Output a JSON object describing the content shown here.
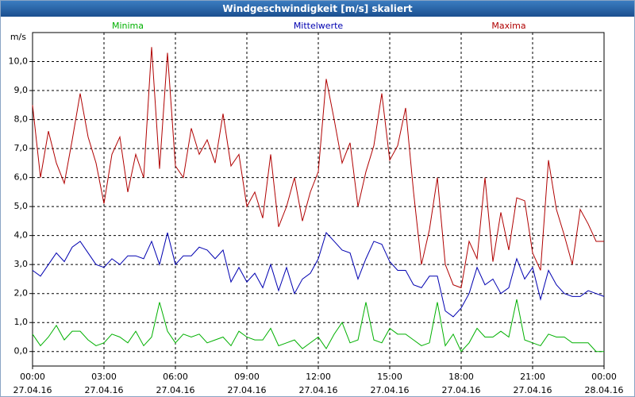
{
  "chart_data": {
    "type": "line",
    "title": "Windgeschwindigkeit [m/s] skaliert",
    "y_label": "m/s",
    "grid": true,
    "x": [
      "27.04.16 00:00",
      "27.04.16 00:20",
      "27.04.16 00:40",
      "27.04.16 01:00",
      "27.04.16 01:20",
      "27.04.16 01:40",
      "27.04.16 02:00",
      "27.04.16 02:20",
      "27.04.16 02:40",
      "27.04.16 03:00",
      "27.04.16 03:20",
      "27.04.16 03:40",
      "27.04.16 04:00",
      "27.04.16 04:20",
      "27.04.16 04:40",
      "27.04.16 05:00",
      "27.04.16 05:20",
      "27.04.16 05:40",
      "27.04.16 06:00",
      "27.04.16 06:20",
      "27.04.16 06:40",
      "27.04.16 07:00",
      "27.04.16 07:20",
      "27.04.16 07:40",
      "27.04.16 08:00",
      "27.04.16 08:20",
      "27.04.16 08:40",
      "27.04.16 09:00",
      "27.04.16 09:20",
      "27.04.16 09:40",
      "27.04.16 10:00",
      "27.04.16 10:20",
      "27.04.16 10:40",
      "27.04.16 11:00",
      "27.04.16 11:20",
      "27.04.16 11:40",
      "27.04.16 12:00",
      "27.04.16 12:20",
      "27.04.16 12:40",
      "27.04.16 13:00",
      "27.04.16 13:20",
      "27.04.16 13:40",
      "27.04.16 14:00",
      "27.04.16 14:20",
      "27.04.16 14:40",
      "27.04.16 15:00",
      "27.04.16 15:20",
      "27.04.16 15:40",
      "27.04.16 16:00",
      "27.04.16 16:20",
      "27.04.16 16:40",
      "27.04.16 17:00",
      "27.04.16 17:20",
      "27.04.16 17:40",
      "27.04.16 18:00",
      "27.04.16 18:20",
      "27.04.16 18:40",
      "27.04.16 19:00",
      "27.04.16 19:20",
      "27.04.16 19:40",
      "27.04.16 20:00",
      "27.04.16 20:20",
      "27.04.16 20:40",
      "27.04.16 21:00",
      "27.04.16 21:20",
      "27.04.16 21:40",
      "27.04.16 22:00",
      "27.04.16 22:20",
      "27.04.16 22:40",
      "27.04.16 23:00",
      "27.04.16 23:20",
      "27.04.16 23:40",
      "28.04.16 00:00"
    ],
    "series": [
      {
        "name": "Minima",
        "color": "#00b000",
        "values": [
          0.6,
          0.2,
          0.5,
          0.9,
          0.4,
          0.7,
          0.7,
          0.4,
          0.2,
          0.3,
          0.6,
          0.5,
          0.3,
          0.7,
          0.2,
          0.5,
          1.7,
          0.7,
          0.3,
          0.6,
          0.5,
          0.6,
          0.3,
          0.4,
          0.5,
          0.2,
          0.7,
          0.5,
          0.4,
          0.4,
          0.8,
          0.2,
          0.3,
          0.4,
          0.1,
          0.3,
          0.5,
          0.1,
          0.6,
          1.0,
          0.3,
          0.4,
          1.7,
          0.4,
          0.3,
          0.8,
          0.6,
          0.6,
          0.4,
          0.2,
          0.3,
          1.7,
          0.2,
          0.6,
          0.0,
          0.3,
          0.8,
          0.5,
          0.5,
          0.7,
          0.5,
          1.8,
          0.4,
          0.3,
          0.2,
          0.6,
          0.5,
          0.5,
          0.3,
          0.3,
          0.3,
          0.0,
          0.0
        ]
      },
      {
        "name": "Mittelwerte",
        "color": "#0000b0",
        "values": [
          2.8,
          2.6,
          3.0,
          3.4,
          3.1,
          3.6,
          3.8,
          3.4,
          3.0,
          2.9,
          3.2,
          3.0,
          3.3,
          3.3,
          3.2,
          3.8,
          3.0,
          4.1,
          3.0,
          3.3,
          3.3,
          3.6,
          3.5,
          3.2,
          3.5,
          2.4,
          2.9,
          2.4,
          2.7,
          2.2,
          3.0,
          2.1,
          2.9,
          2.0,
          2.5,
          2.7,
          3.2,
          4.1,
          3.8,
          3.5,
          3.4,
          2.5,
          3.2,
          3.8,
          3.7,
          3.1,
          2.8,
          2.8,
          2.3,
          2.2,
          2.6,
          2.6,
          1.4,
          1.2,
          1.5,
          2.0,
          2.9,
          2.3,
          2.5,
          2.0,
          2.2,
          3.2,
          2.5,
          2.9,
          1.8,
          2.8,
          2.3,
          2.0,
          1.9,
          1.9,
          2.1,
          2.0,
          1.9
        ]
      },
      {
        "name": "Maxima",
        "color": "#b00000",
        "values": [
          8.5,
          6.0,
          7.6,
          6.5,
          5.8,
          7.3,
          8.9,
          7.4,
          6.5,
          5.1,
          6.8,
          7.4,
          5.5,
          6.8,
          6.0,
          10.5,
          6.3,
          10.3,
          6.4,
          6.0,
          7.7,
          6.8,
          7.3,
          6.5,
          8.2,
          6.4,
          6.8,
          5.0,
          5.5,
          4.6,
          6.8,
          4.3,
          5.0,
          6.0,
          4.5,
          5.5,
          6.2,
          9.4,
          8.0,
          6.5,
          7.2,
          5.0,
          6.2,
          7.1,
          8.9,
          6.6,
          7.1,
          8.4,
          5.5,
          3.0,
          4.2,
          6.0,
          3.0,
          2.3,
          2.2,
          3.8,
          3.2,
          6.0,
          3.1,
          4.8,
          3.5,
          5.3,
          5.2,
          3.4,
          2.8,
          6.6,
          4.9,
          4.0,
          3.0,
          4.9,
          4.4,
          3.8,
          3.8
        ]
      }
    ],
    "xlim": [
      "27.04.16 00:00",
      "28.04.16 00:00"
    ],
    "xticks": [
      {
        "value": "27.04.16 00:00",
        "label": "00:00\n27.04.16"
      },
      {
        "value": "27.04.16 03:00",
        "label": "03:00\n27.04.16"
      },
      {
        "value": "27.04.16 06:00",
        "label": "06:00\n27.04.16"
      },
      {
        "value": "27.04.16 09:00",
        "label": "09:00\n27.04.16"
      },
      {
        "value": "27.04.16 12:00",
        "label": "12:00\n27.04.16"
      },
      {
        "value": "27.04.16 15:00",
        "label": "15:00\n27.04.16"
      },
      {
        "value": "27.04.16 18:00",
        "label": "18:00\n27.04.16"
      },
      {
        "value": "27.04.16 21:00",
        "label": "21:00\n27.04.16"
      },
      {
        "value": "28.04.16 00:00",
        "label": "00:00\n28.04.16"
      }
    ],
    "ylim": [
      -0.5,
      11.0
    ],
    "yticks": [
      {
        "value": 0,
        "label": "0,0"
      },
      {
        "value": 1,
        "label": "1,0"
      },
      {
        "value": 2,
        "label": "2,0"
      },
      {
        "value": 3,
        "label": "3,0"
      },
      {
        "value": 4,
        "label": "4,0"
      },
      {
        "value": 5,
        "label": "5,0"
      },
      {
        "value": 6,
        "label": "6,0"
      },
      {
        "value": 7,
        "label": "7,0"
      },
      {
        "value": 8,
        "label": "8,0"
      },
      {
        "value": 9,
        "label": "9,0"
      },
      {
        "value": 10,
        "label": "10,0"
      }
    ]
  }
}
